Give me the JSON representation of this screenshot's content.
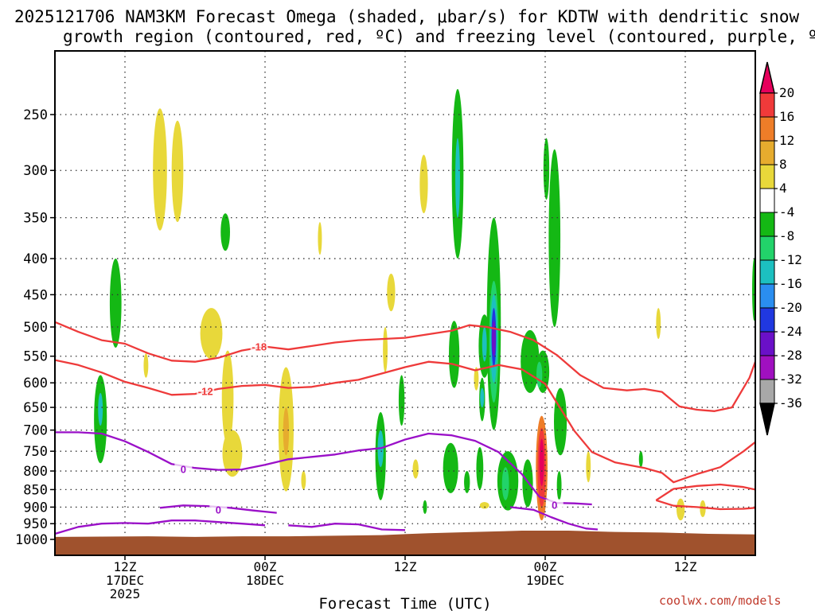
{
  "chart_data": {
    "type": "heatmap",
    "title_line1": "2025121706 NAM3KM Forecast Omega (shaded, μbar/s) for KDTW with dendritic snow",
    "title_line2": "growth region (contoured, red, ºC) and freezing level (contoured, purple, ºC)",
    "xlabel": "Forecast Time (UTC)",
    "credit": "coolwx.com/models",
    "pressure_ticks": [
      250,
      300,
      350,
      400,
      450,
      500,
      550,
      600,
      650,
      700,
      750,
      800,
      850,
      900,
      950,
      1000
    ],
    "ylim": [
      200,
      1010
    ],
    "xlim_hours": [
      6,
      66
    ],
    "time_ticks": [
      {
        "hour": 12,
        "lines": [
          "12Z",
          "17DEC",
          "2025"
        ]
      },
      {
        "hour": 24,
        "lines": [
          "00Z",
          "18DEC"
        ]
      },
      {
        "hour": 36,
        "lines": [
          "12Z"
        ]
      },
      {
        "hour": 48,
        "lines": [
          "00Z",
          "19DEC"
        ]
      },
      {
        "hour": 60,
        "lines": [
          "12Z"
        ]
      }
    ],
    "colorbar_levels": [
      "20",
      "16",
      "12",
      "8",
      "4",
      "-4",
      "-8",
      "-12",
      "-16",
      "-20",
      "-24",
      "-28",
      "-32",
      "-36"
    ],
    "colorbar_colors": [
      "#e6005c",
      "#f03a3a",
      "#ee7d28",
      "#e6ac2e",
      "#e8d83a",
      "#ffffff",
      "#14b814",
      "#22d36a",
      "#1cc0c0",
      "#2a8ef0",
      "#2038e0",
      "#6a10c8",
      "#a010c0",
      "#a8a8a8"
    ],
    "colors": {
      "dgz": "#ee3a3a",
      "freezing": "#9a10c8",
      "ground": "#a0522d"
    },
    "dgz_contours": [
      {
        "level": -18,
        "label": "-18",
        "label_at": [
          23.5,
          533
        ],
        "points": [
          [
            6,
            492
          ],
          [
            8,
            508
          ],
          [
            10,
            522
          ],
          [
            12,
            528
          ],
          [
            14,
            545
          ],
          [
            16,
            558
          ],
          [
            18,
            560
          ],
          [
            20,
            553
          ],
          [
            22,
            540
          ],
          [
            24,
            533
          ],
          [
            26,
            538
          ],
          [
            28,
            532
          ],
          [
            30,
            526
          ],
          [
            32,
            522
          ],
          [
            34,
            520
          ],
          [
            36,
            518
          ],
          [
            38,
            512
          ],
          [
            40,
            506
          ],
          [
            41.5,
            497
          ],
          [
            43,
            500
          ],
          [
            45,
            508
          ],
          [
            47,
            522
          ],
          [
            49,
            548
          ],
          [
            51,
            585
          ],
          [
            53,
            610
          ],
          [
            55,
            615
          ],
          [
            56.5,
            612
          ],
          [
            58,
            618
          ],
          [
            59.5,
            648
          ],
          [
            61,
            655
          ],
          [
            62.5,
            658
          ],
          [
            64,
            650
          ],
          [
            65.5,
            590
          ],
          [
            66,
            560
          ]
        ]
      },
      {
        "level": -12,
        "label": "-12",
        "label_at": [
          18.9,
          616
        ],
        "points": [
          [
            6,
            557
          ],
          [
            8,
            566
          ],
          [
            10,
            580
          ],
          [
            12,
            598
          ],
          [
            14,
            610
          ],
          [
            16,
            624
          ],
          [
            18,
            622
          ],
          [
            20,
            612
          ],
          [
            22,
            606
          ],
          [
            24,
            604
          ],
          [
            26,
            610
          ],
          [
            28,
            608
          ],
          [
            30,
            600
          ],
          [
            32,
            594
          ],
          [
            34,
            582
          ],
          [
            36,
            570
          ],
          [
            38,
            560
          ],
          [
            40,
            564
          ],
          [
            42,
            576
          ],
          [
            44,
            566
          ],
          [
            46,
            574
          ],
          [
            48,
            602
          ],
          [
            49.5,
            660
          ],
          [
            50.5,
            702
          ],
          [
            52,
            752
          ],
          [
            54,
            778
          ],
          [
            56.5,
            792
          ],
          [
            58,
            805
          ],
          [
            59,
            830
          ],
          [
            61,
            808
          ],
          [
            63,
            790
          ],
          [
            65,
            750
          ],
          [
            66,
            728
          ]
        ]
      },
      {
        "level": -12,
        "label": "",
        "label_at": null,
        "points": [
          [
            57.5,
            880
          ],
          [
            59,
            848
          ],
          [
            61,
            840
          ],
          [
            63,
            836
          ],
          [
            65,
            843
          ],
          [
            66,
            850
          ]
        ]
      },
      {
        "level": -12,
        "label": "",
        "label_at": null,
        "points": [
          [
            57.5,
            880
          ],
          [
            59,
            896
          ],
          [
            61,
            900
          ],
          [
            63,
            906
          ],
          [
            65,
            905
          ],
          [
            66,
            902
          ]
        ]
      }
    ],
    "freezing_contours": [
      {
        "level": 0,
        "label": "0",
        "label_at": [
          17,
          795
        ],
        "points": [
          [
            6,
            705
          ],
          [
            8,
            705
          ],
          [
            10,
            708
          ],
          [
            12,
            726
          ],
          [
            14,
            752
          ],
          [
            16,
            782
          ],
          [
            18,
            792
          ],
          [
            20,
            797
          ],
          [
            22,
            796
          ],
          [
            24,
            784
          ],
          [
            26,
            770
          ],
          [
            28,
            764
          ],
          [
            30,
            758
          ],
          [
            32,
            748
          ],
          [
            34,
            742
          ],
          [
            36,
            722
          ],
          [
            38,
            708
          ],
          [
            40,
            712
          ],
          [
            42,
            725
          ],
          [
            44,
            752
          ],
          [
            46,
            808
          ],
          [
            47.5,
            870
          ],
          [
            49,
            888
          ],
          [
            50.5,
            889
          ],
          [
            52,
            892
          ]
        ]
      },
      {
        "level": 0,
        "label": "0",
        "label_at": [
          20,
          907
        ],
        "points": [
          [
            15,
            902
          ],
          [
            17,
            895
          ],
          [
            19,
            897
          ],
          [
            21,
            902
          ],
          [
            23,
            910
          ],
          [
            25,
            917
          ]
        ]
      },
      {
        "level": 0,
        "label": "",
        "label_at": null,
        "points": [
          [
            6,
            982
          ],
          [
            8,
            960
          ],
          [
            10,
            950
          ],
          [
            12,
            948
          ],
          [
            14,
            950
          ]
        ]
      },
      {
        "level": 0,
        "label": "",
        "label_at": null,
        "points": [
          [
            14,
            950
          ],
          [
            16,
            940
          ],
          [
            18,
            940
          ],
          [
            20,
            945
          ],
          [
            22,
            950
          ],
          [
            24,
            955
          ]
        ]
      },
      {
        "level": 0,
        "label": "",
        "label_at": null,
        "points": [
          [
            26,
            955
          ],
          [
            28,
            960
          ],
          [
            30,
            950
          ],
          [
            32,
            952
          ],
          [
            34,
            968
          ],
          [
            36,
            970
          ]
        ]
      },
      {
        "level": 0,
        "label": "0",
        "label_at": [
          48.8,
          893
        ],
        "points": [
          [
            45,
            900
          ],
          [
            47,
            908
          ],
          [
            48.5,
            930
          ],
          [
            50,
            950
          ],
          [
            51.5,
            965
          ],
          [
            52.5,
            968
          ]
        ]
      }
    ],
    "omega_areas": [
      {
        "t": 15,
        "p0": 245,
        "p1": 365,
        "w": 1.2,
        "value": 6
      },
      {
        "t": 16.5,
        "p0": 255,
        "p1": 355,
        "w": 1.0,
        "value": 6
      },
      {
        "t": 19.4,
        "p0": 470,
        "p1": 555,
        "w": 1.9,
        "value": 6
      },
      {
        "t": 20.8,
        "p0": 540,
        "p1": 735,
        "w": 1.0,
        "value": 6
      },
      {
        "t": 21.2,
        "p0": 700,
        "p1": 815,
        "w": 1.7,
        "value": 6
      },
      {
        "t": 25.8,
        "p0": 570,
        "p1": 855,
        "w": 1.3,
        "value": 6
      },
      {
        "t": 25.8,
        "p0": 650,
        "p1": 760,
        "w": 0.5,
        "value": 10
      },
      {
        "t": 13.8,
        "p0": 545,
        "p1": 590,
        "w": 0.4,
        "value": 6
      },
      {
        "t": 27.3,
        "p0": 800,
        "p1": 850,
        "w": 0.4,
        "value": 6
      },
      {
        "t": 34.8,
        "p0": 420,
        "p1": 475,
        "w": 0.7,
        "value": 6
      },
      {
        "t": 34.3,
        "p0": 500,
        "p1": 580,
        "w": 0.4,
        "value": 6
      },
      {
        "t": 37.6,
        "p0": 285,
        "p1": 345,
        "w": 0.7,
        "value": 6
      },
      {
        "t": 40.2,
        "p0": 500,
        "p1": 565,
        "w": 0.8,
        "value": 6
      },
      {
        "t": 42.1,
        "p0": 570,
        "p1": 615,
        "w": 0.4,
        "value": 6
      },
      {
        "t": 42.8,
        "p0": 885,
        "p1": 905,
        "w": 0.8,
        "value": 6
      },
      {
        "t": 28.7,
        "p0": 355,
        "p1": 395,
        "w": 0.2,
        "value": 6
      },
      {
        "t": 36.9,
        "p0": 770,
        "p1": 820,
        "w": 0.5,
        "value": 6
      },
      {
        "t": 51.7,
        "p0": 750,
        "p1": 830,
        "w": 0.4,
        "value": 6
      },
      {
        "t": 57.7,
        "p0": 470,
        "p1": 520,
        "w": 0.4,
        "value": 6
      },
      {
        "t": 59.6,
        "p0": 875,
        "p1": 940,
        "w": 0.7,
        "value": 6
      },
      {
        "t": 61.5,
        "p0": 880,
        "p1": 930,
        "w": 0.5,
        "value": 6
      },
      {
        "t": 47.7,
        "p0": 668,
        "p1": 940,
        "w": 1.0,
        "value": 12
      },
      {
        "t": 47.7,
        "p0": 695,
        "p1": 900,
        "w": 0.7,
        "value": 16
      },
      {
        "t": 47.7,
        "p0": 720,
        "p1": 840,
        "w": 0.4,
        "value": 20
      },
      {
        "t": 20.6,
        "p0": 345,
        "p1": 390,
        "w": 0.8,
        "value": -6
      },
      {
        "t": 11.2,
        "p0": 400,
        "p1": 535,
        "w": 1.0,
        "value": -6
      },
      {
        "t": 9.9,
        "p0": 585,
        "p1": 780,
        "w": 1.1,
        "value": -6
      },
      {
        "t": 9.9,
        "p0": 620,
        "p1": 690,
        "w": 0.4,
        "value": -14
      },
      {
        "t": 33.9,
        "p0": 660,
        "p1": 880,
        "w": 0.9,
        "value": -6
      },
      {
        "t": 33.9,
        "p0": 700,
        "p1": 790,
        "w": 0.5,
        "value": -14
      },
      {
        "t": 35.7,
        "p0": 585,
        "p1": 690,
        "w": 0.5,
        "value": -6
      },
      {
        "t": 37.7,
        "p0": 880,
        "p1": 920,
        "w": 0.3,
        "value": -6
      },
      {
        "t": 40.5,
        "p0": 230,
        "p1": 400,
        "w": 1.0,
        "value": -6
      },
      {
        "t": 40.5,
        "p0": 270,
        "p1": 350,
        "w": 0.4,
        "value": -14
      },
      {
        "t": 40.2,
        "p0": 490,
        "p1": 610,
        "w": 0.9,
        "value": -6
      },
      {
        "t": 39.9,
        "p0": 730,
        "p1": 860,
        "w": 1.3,
        "value": -6
      },
      {
        "t": 42.8,
        "p0": 480,
        "p1": 590,
        "w": 1.0,
        "value": -6
      },
      {
        "t": 42.8,
        "p0": 500,
        "p1": 560,
        "w": 0.4,
        "value": -14
      },
      {
        "t": 42.4,
        "p0": 740,
        "p1": 850,
        "w": 0.6,
        "value": -6
      },
      {
        "t": 41.3,
        "p0": 800,
        "p1": 860,
        "w": 0.5,
        "value": -6
      },
      {
        "t": 42.6,
        "p0": 590,
        "p1": 680,
        "w": 0.5,
        "value": -6
      },
      {
        "t": 42.6,
        "p0": 610,
        "p1": 650,
        "w": 0.2,
        "value": -14
      },
      {
        "t": 43.6,
        "p0": 350,
        "p1": 700,
        "w": 1.2,
        "value": -6
      },
      {
        "t": 43.6,
        "p0": 430,
        "p1": 640,
        "w": 0.8,
        "value": -11
      },
      {
        "t": 43.6,
        "p0": 450,
        "p1": 600,
        "w": 0.6,
        "value": -15
      },
      {
        "t": 43.6,
        "p0": 470,
        "p1": 570,
        "w": 0.4,
        "value": -22
      },
      {
        "t": 43.6,
        "p0": 490,
        "p1": 550,
        "w": 0.25,
        "value": -26
      },
      {
        "t": 44.8,
        "p0": 750,
        "p1": 910,
        "w": 1.8,
        "value": -6
      },
      {
        "t": 44.6,
        "p0": 790,
        "p1": 880,
        "w": 0.6,
        "value": -11
      },
      {
        "t": 46.5,
        "p0": 770,
        "p1": 900,
        "w": 0.9,
        "value": -6
      },
      {
        "t": 46.7,
        "p0": 505,
        "p1": 620,
        "w": 1.6,
        "value": -6
      },
      {
        "t": 47.8,
        "p0": 540,
        "p1": 620,
        "w": 1.1,
        "value": -6
      },
      {
        "t": 47.5,
        "p0": 560,
        "p1": 610,
        "w": 0.5,
        "value": -11
      },
      {
        "t": 48.1,
        "p0": 270,
        "p1": 330,
        "w": 0.5,
        "value": -6
      },
      {
        "t": 48.8,
        "p0": 280,
        "p1": 500,
        "w": 1.0,
        "value": -6
      },
      {
        "t": 49.3,
        "p0": 610,
        "p1": 760,
        "w": 1.1,
        "value": -6
      },
      {
        "t": 49.2,
        "p0": 800,
        "p1": 880,
        "w": 0.4,
        "value": -6
      },
      {
        "t": 56.2,
        "p0": 750,
        "p1": 790,
        "w": 0.2,
        "value": -6
      },
      {
        "t": 65.9,
        "p0": 400,
        "p1": 490,
        "w": 0.2,
        "value": -6
      }
    ]
  }
}
